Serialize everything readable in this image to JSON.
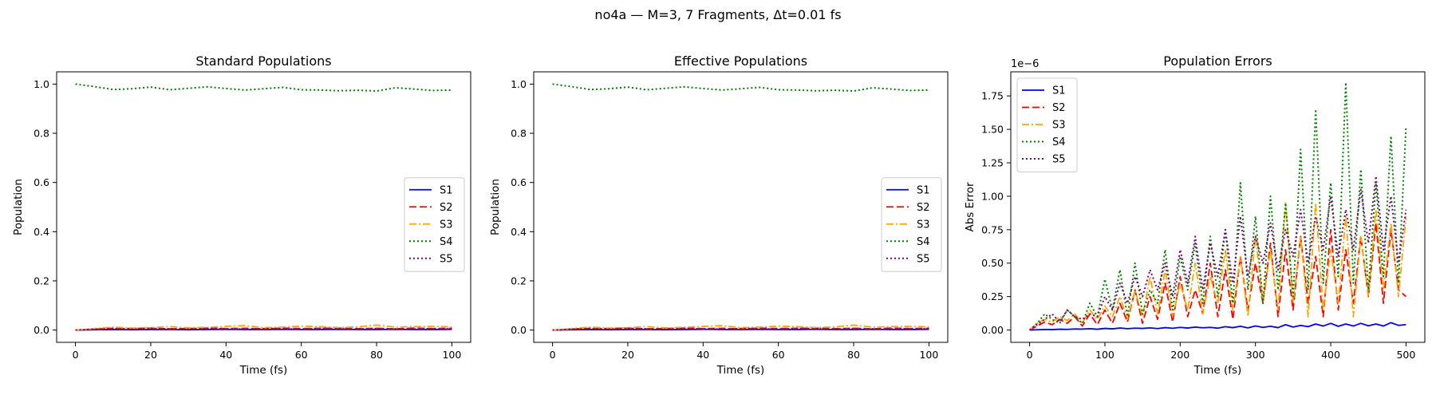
{
  "figure": {
    "suptitle": "no4a — M=3, 7 Fragments, Δt=0.01 fs"
  },
  "chart_data": [
    {
      "type": "line",
      "title": "Standard Populations",
      "xlabel": "Time (fs)",
      "ylabel": "Population",
      "xlim": [
        -5,
        105
      ],
      "ylim": [
        -0.05,
        1.05
      ],
      "xticks": [
        0,
        20,
        40,
        60,
        80,
        100
      ],
      "yticks": [
        0.0,
        0.2,
        0.4,
        0.6,
        0.8,
        1.0
      ],
      "xtick_labels": [
        "0",
        "20",
        "40",
        "60",
        "80",
        "100"
      ],
      "ytick_labels": [
        "0.0",
        "0.2",
        "0.4",
        "0.6",
        "0.8",
        "1.0"
      ],
      "grid": false,
      "legend": {
        "position": "center-right"
      },
      "x": [
        0,
        5,
        10,
        15,
        20,
        25,
        30,
        35,
        40,
        45,
        50,
        55,
        60,
        65,
        70,
        75,
        80,
        85,
        90,
        95,
        100
      ],
      "series": [
        {
          "name": "S1",
          "color": "#0000ff",
          "style": "solid",
          "values": [
            0,
            0.001,
            0.002,
            0.001,
            0.002,
            0.002,
            0.001,
            0.002,
            0.003,
            0.002,
            0.002,
            0.003,
            0.002,
            0.002,
            0.003,
            0.002,
            0.002,
            0.003,
            0.002,
            0.002,
            0.003
          ]
        },
        {
          "name": "S2",
          "color": "#ff0000",
          "style": "dashed",
          "values": [
            0,
            0.004,
            0.007,
            0.006,
            0.008,
            0.005,
            0.006,
            0.008,
            0.006,
            0.007,
            0.005,
            0.008,
            0.006,
            0.007,
            0.008,
            0.006,
            0.007,
            0.005,
            0.008,
            0.006,
            0.007
          ]
        },
        {
          "name": "S3",
          "color": "#ffa500",
          "style": "dashdot",
          "values": [
            0,
            0.006,
            0.012,
            0.008,
            0.01,
            0.014,
            0.009,
            0.011,
            0.015,
            0.018,
            0.01,
            0.012,
            0.016,
            0.014,
            0.01,
            0.013,
            0.02,
            0.012,
            0.014,
            0.015,
            0.013
          ]
        },
        {
          "name": "S4",
          "color": "#008000",
          "style": "dotted",
          "values": [
            1.0,
            0.99,
            0.978,
            0.981,
            0.988,
            0.977,
            0.983,
            0.989,
            0.982,
            0.976,
            0.981,
            0.987,
            0.977,
            0.976,
            0.973,
            0.975,
            0.972,
            0.985,
            0.98,
            0.974,
            0.976
          ]
        },
        {
          "name": "S5",
          "color": "#800080",
          "style": "dotted",
          "values": [
            0,
            0.003,
            0.006,
            0.004,
            0.006,
            0.005,
            0.004,
            0.006,
            0.005,
            0.004,
            0.006,
            0.005,
            0.004,
            0.006,
            0.005,
            0.004,
            0.006,
            0.005,
            0.004,
            0.006,
            0.005
          ]
        }
      ]
    },
    {
      "type": "line",
      "title": "Effective Populations",
      "xlabel": "Time (fs)",
      "ylabel": "Population",
      "xlim": [
        -5,
        105
      ],
      "ylim": [
        -0.05,
        1.05
      ],
      "xticks": [
        0,
        20,
        40,
        60,
        80,
        100
      ],
      "yticks": [
        0.0,
        0.2,
        0.4,
        0.6,
        0.8,
        1.0
      ],
      "xtick_labels": [
        "0",
        "20",
        "40",
        "60",
        "80",
        "100"
      ],
      "ytick_labels": [
        "0.0",
        "0.2",
        "0.4",
        "0.6",
        "0.8",
        "1.0"
      ],
      "grid": false,
      "legend": {
        "position": "center-right"
      },
      "x": [
        0,
        5,
        10,
        15,
        20,
        25,
        30,
        35,
        40,
        45,
        50,
        55,
        60,
        65,
        70,
        75,
        80,
        85,
        90,
        95,
        100
      ],
      "series": [
        {
          "name": "S1",
          "color": "#0000ff",
          "style": "solid",
          "values": [
            0,
            0.001,
            0.002,
            0.001,
            0.002,
            0.002,
            0.001,
            0.002,
            0.003,
            0.002,
            0.002,
            0.003,
            0.002,
            0.002,
            0.003,
            0.002,
            0.002,
            0.003,
            0.002,
            0.002,
            0.003
          ]
        },
        {
          "name": "S2",
          "color": "#ff0000",
          "style": "dashed",
          "values": [
            0,
            0.004,
            0.007,
            0.006,
            0.008,
            0.005,
            0.006,
            0.008,
            0.006,
            0.007,
            0.005,
            0.008,
            0.006,
            0.007,
            0.008,
            0.006,
            0.007,
            0.005,
            0.008,
            0.006,
            0.007
          ]
        },
        {
          "name": "S3",
          "color": "#ffa500",
          "style": "dashdot",
          "values": [
            0,
            0.006,
            0.012,
            0.008,
            0.01,
            0.014,
            0.009,
            0.011,
            0.015,
            0.018,
            0.01,
            0.012,
            0.016,
            0.014,
            0.01,
            0.013,
            0.02,
            0.012,
            0.014,
            0.015,
            0.013
          ]
        },
        {
          "name": "S4",
          "color": "#008000",
          "style": "dotted",
          "values": [
            1.0,
            0.99,
            0.978,
            0.981,
            0.988,
            0.977,
            0.983,
            0.989,
            0.982,
            0.976,
            0.981,
            0.987,
            0.977,
            0.976,
            0.973,
            0.975,
            0.972,
            0.985,
            0.98,
            0.974,
            0.976
          ]
        },
        {
          "name": "S5",
          "color": "#800080",
          "style": "dotted",
          "values": [
            0,
            0.003,
            0.006,
            0.004,
            0.006,
            0.005,
            0.004,
            0.006,
            0.005,
            0.004,
            0.006,
            0.005,
            0.004,
            0.006,
            0.005,
            0.004,
            0.006,
            0.005,
            0.004,
            0.006,
            0.005
          ]
        }
      ]
    },
    {
      "type": "line",
      "title": "Population Errors",
      "xlabel": "Time (fs)",
      "ylabel": "Abs Error",
      "offset_text": "1e−6",
      "value_unit": "×1e-6",
      "xlim": [
        -25,
        525
      ],
      "ylim": [
        -0.092,
        1.93
      ],
      "xticks": [
        0,
        100,
        200,
        300,
        400,
        500
      ],
      "yticks": [
        0.0,
        0.25,
        0.5,
        0.75,
        1.0,
        1.25,
        1.5,
        1.75
      ],
      "xtick_labels": [
        "0",
        "100",
        "200",
        "300",
        "400",
        "500"
      ],
      "ytick_labels": [
        "0.00",
        "0.25",
        "0.50",
        "0.75",
        "1.00",
        "1.25",
        "1.50",
        "1.75"
      ],
      "grid": false,
      "legend": {
        "position": "upper-left"
      },
      "x": [
        0,
        10,
        20,
        30,
        40,
        50,
        60,
        70,
        80,
        90,
        100,
        110,
        120,
        130,
        140,
        150,
        160,
        170,
        180,
        190,
        200,
        210,
        220,
        230,
        240,
        250,
        260,
        270,
        280,
        290,
        300,
        310,
        320,
        330,
        340,
        350,
        360,
        370,
        380,
        390,
        400,
        410,
        420,
        430,
        440,
        450,
        460,
        470,
        480,
        490,
        500
      ],
      "series": [
        {
          "name": "S1",
          "color": "#0000ff",
          "style": "solid",
          "values": [
            0,
            0.002,
            0.004,
            0.003,
            0.006,
            0.005,
            0.008,
            0.007,
            0.01,
            0.006,
            0.012,
            0.009,
            0.015,
            0.01,
            0.014,
            0.012,
            0.016,
            0.011,
            0.018,
            0.013,
            0.02,
            0.015,
            0.022,
            0.017,
            0.02,
            0.014,
            0.025,
            0.018,
            0.028,
            0.016,
            0.03,
            0.02,
            0.028,
            0.018,
            0.04,
            0.022,
            0.035,
            0.025,
            0.045,
            0.03,
            0.05,
            0.028,
            0.045,
            0.03,
            0.05,
            0.032,
            0.045,
            0.03,
            0.055,
            0.035,
            0.04
          ]
        },
        {
          "name": "S2",
          "color": "#ff0000",
          "style": "dashed",
          "values": [
            0,
            0.03,
            0.06,
            0.04,
            0.08,
            0.05,
            0.1,
            0.03,
            0.12,
            0.04,
            0.15,
            0.05,
            0.2,
            0.06,
            0.3,
            0.05,
            0.25,
            0.08,
            0.35,
            0.06,
            0.4,
            0.1,
            0.3,
            0.12,
            0.5,
            0.1,
            0.45,
            0.08,
            0.55,
            0.15,
            0.5,
            0.2,
            0.65,
            0.1,
            0.6,
            0.15,
            0.7,
            0.2,
            0.55,
            0.1,
            0.75,
            0.15,
            0.6,
            0.2,
            0.7,
            0.25,
            0.8,
            0.2,
            0.75,
            0.3,
            0.25
          ]
        },
        {
          "name": "S3",
          "color": "#ffa500",
          "style": "dashdot",
          "values": [
            0,
            0.05,
            0.08,
            0.06,
            0.1,
            0.07,
            0.12,
            0.05,
            0.15,
            0.08,
            0.18,
            0.1,
            0.25,
            0.08,
            0.3,
            0.1,
            0.4,
            0.12,
            0.45,
            0.1,
            0.35,
            0.15,
            0.5,
            0.12,
            0.4,
            0.2,
            0.6,
            0.15,
            0.55,
            0.1,
            0.7,
            0.2,
            0.6,
            0.15,
            0.95,
            0.2,
            0.7,
            0.1,
            0.95,
            0.15,
            0.6,
            0.2,
            0.85,
            0.1,
            0.7,
            0.25,
            0.9,
            0.3,
            0.8,
            0.25,
            0.85
          ]
        },
        {
          "name": "S4",
          "color": "#008000",
          "style": "dotted",
          "values": [
            0,
            0.05,
            0.12,
            0.08,
            0.05,
            0.15,
            0.1,
            0.05,
            0.2,
            0.1,
            0.38,
            0.15,
            0.45,
            0.1,
            0.5,
            0.12,
            0.3,
            0.2,
            0.6,
            0.15,
            0.55,
            0.3,
            0.65,
            0.2,
            0.7,
            0.25,
            0.75,
            0.2,
            1.1,
            0.3,
            0.85,
            0.2,
            1.0,
            0.3,
            0.95,
            0.25,
            1.35,
            0.3,
            1.65,
            0.35,
            1.1,
            0.4,
            1.85,
            0.35,
            1.2,
            0.3,
            1.1,
            0.4,
            1.45,
            0.35,
            1.52
          ]
        },
        {
          "name": "S5",
          "color": "#800080",
          "style": "dotted",
          "values": [
            0,
            0.04,
            0.08,
            0.12,
            0.06,
            0.15,
            0.1,
            0.08,
            0.12,
            0.1,
            0.25,
            0.15,
            0.35,
            0.2,
            0.4,
            0.25,
            0.45,
            0.3,
            0.5,
            0.25,
            0.6,
            0.35,
            0.7,
            0.3,
            0.65,
            0.4,
            0.75,
            0.35,
            0.85,
            0.4,
            0.7,
            0.5,
            0.8,
            0.45,
            0.75,
            0.55,
            0.9,
            0.5,
            0.85,
            0.6,
            1.0,
            0.55,
            0.9,
            0.6,
            1.05,
            0.65,
            1.15,
            0.6,
            1.0,
            0.5,
            0.9
          ]
        }
      ]
    }
  ]
}
